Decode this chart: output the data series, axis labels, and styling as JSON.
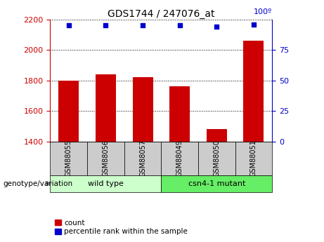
{
  "title": "GDS1744 / 247076_at",
  "samples": [
    "GSM88055",
    "GSM88056",
    "GSM88057",
    "GSM88049",
    "GSM88050",
    "GSM88051"
  ],
  "bar_values": [
    1800,
    1840,
    1820,
    1760,
    1480,
    2060
  ],
  "percentile_values": [
    95,
    95,
    95,
    95,
    94,
    96
  ],
  "ylim_left": [
    1400,
    2200
  ],
  "ylim_right": [
    0,
    100
  ],
  "yticks_left": [
    1400,
    1600,
    1800,
    2000,
    2200
  ],
  "yticks_right": [
    0,
    25,
    50,
    75,
    100
  ],
  "bar_color": "#cc0000",
  "percentile_color": "#0000cc",
  "grid_color": "#000000",
  "groups": [
    {
      "label": "wild type",
      "indices": [
        0,
        1,
        2
      ],
      "color": "#ccffcc"
    },
    {
      "label": "csn4-1 mutant",
      "indices": [
        3,
        4,
        5
      ],
      "color": "#66ee66"
    }
  ],
  "group_label": "genotype/variation",
  "legend_count_label": "count",
  "legend_percentile_label": "percentile rank within the sample",
  "title_fontsize": 10,
  "tick_fontsize": 8,
  "bar_width": 0.55,
  "sample_label_fontsize": 7,
  "group_label_fontsize": 8
}
